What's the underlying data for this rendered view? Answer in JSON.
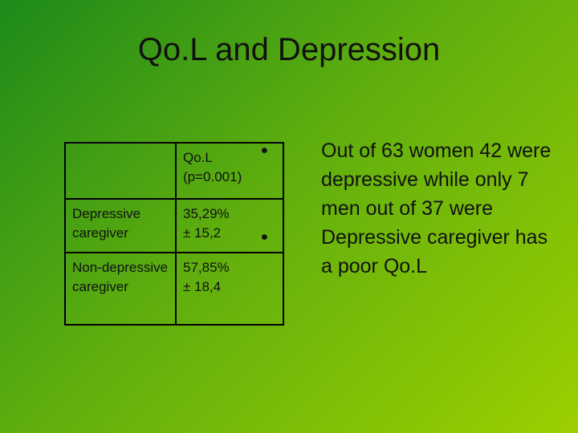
{
  "title": "Qo.L and Depression",
  "table": {
    "header": [
      "Qo.L",
      "(p=0.001)"
    ],
    "rows": [
      {
        "label": "Depressive caregiver",
        "value": [
          "35,29%",
          "± 15,2"
        ]
      },
      {
        "label": "Non-depressive caregiver",
        "value": [
          "57,85%",
          "± 18,4"
        ]
      }
    ]
  },
  "bullets": [
    "Out of 63 women 42 were depressive while only 7 men out of 37 were",
    "Depressive caregiver has a poor Qo.L"
  ]
}
